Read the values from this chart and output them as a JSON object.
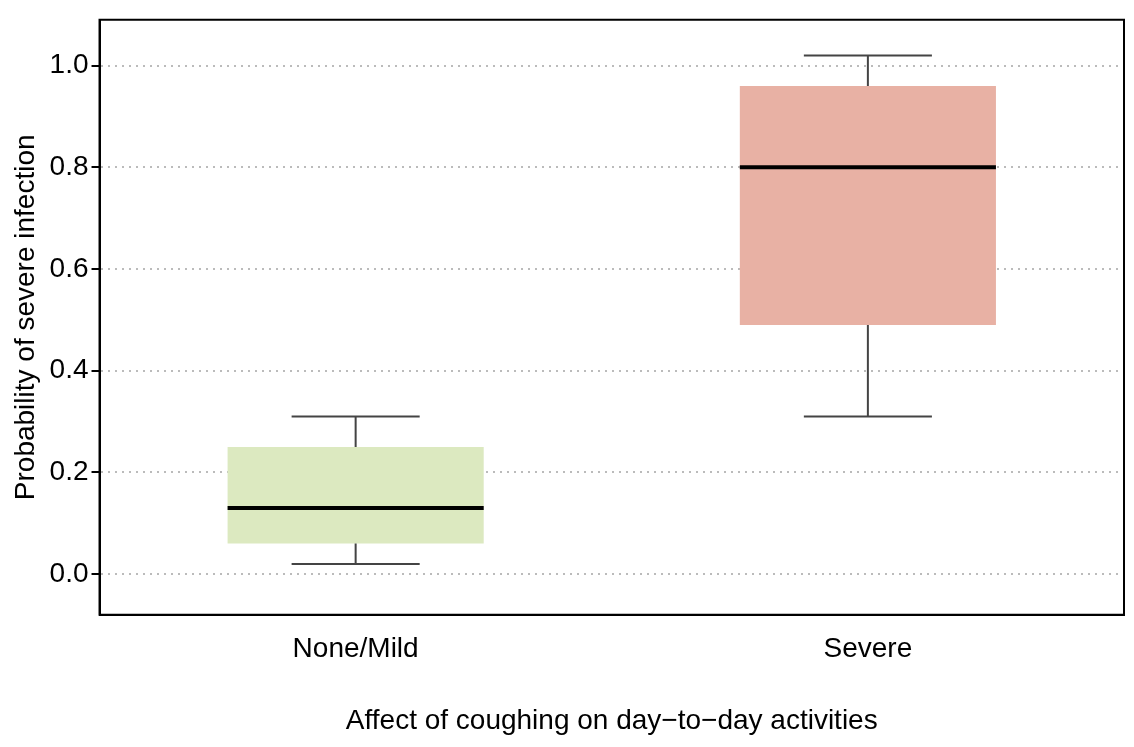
{
  "chart_data": {
    "type": "box",
    "xlabel": "Affect of coughing on day−to−day activities",
    "ylabel": "Probability of severe infection",
    "categories": [
      "None/Mild",
      "Severe"
    ],
    "colors": [
      "#dce9c0",
      "#e8b1a4"
    ],
    "boxes": [
      {
        "low": 0.02,
        "q1": 0.06,
        "median": 0.13,
        "q3": 0.25,
        "high": 0.31
      },
      {
        "low": 0.31,
        "q1": 0.49,
        "median": 0.8,
        "q3": 0.96,
        "high": 1.02
      }
    ],
    "ylim": [
      -0.08,
      1.09
    ],
    "yticks": [
      {
        "value": 0,
        "label": "0.0"
      },
      {
        "value": 0.2,
        "label": "0.2"
      },
      {
        "value": 0.4,
        "label": "0.4"
      },
      {
        "value": 0.6,
        "label": "0.6"
      },
      {
        "value": 0.8,
        "label": "0.8"
      },
      {
        "value": 1,
        "label": "1.0"
      }
    ],
    "grid": "y",
    "legend": false
  }
}
